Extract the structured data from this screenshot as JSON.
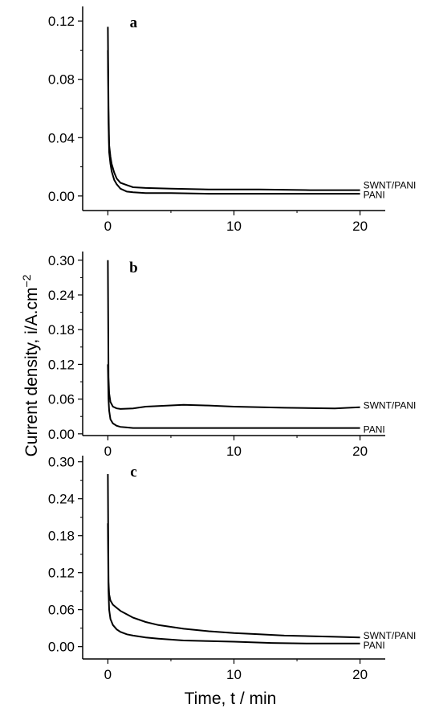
{
  "figure": {
    "ylabel": "Current density, i/A.cm",
    "ylabel_superscript": "−2",
    "xlabel": "Time, t / min"
  },
  "chart_data": [
    {
      "type": "line",
      "panel_label": "a",
      "xlim": [
        -2,
        22
      ],
      "ylim": [
        -0.01,
        0.13
      ],
      "x_ticks": [
        0,
        10,
        20
      ],
      "x_tick_labels": [
        "0",
        "10",
        "20"
      ],
      "y_ticks": [
        0.0,
        0.04,
        0.08,
        0.12
      ],
      "y_tick_labels": [
        "0.00",
        "0.04",
        "0.08",
        "0.12"
      ],
      "grid": false,
      "series": [
        {
          "name": "SWNT/PANI",
          "x": [
            0,
            0.05,
            0.1,
            0.2,
            0.3,
            0.5,
            0.7,
            1.0,
            1.5,
            2.0,
            3.0,
            5.0,
            8.0,
            12.0,
            16.0,
            20.0
          ],
          "y": [
            0.116,
            0.06,
            0.035,
            0.027,
            0.022,
            0.016,
            0.012,
            0.009,
            0.0075,
            0.006,
            0.0055,
            0.005,
            0.0045,
            0.0045,
            0.004,
            0.004
          ]
        },
        {
          "name": "PANI",
          "x": [
            0,
            0.05,
            0.1,
            0.2,
            0.3,
            0.5,
            0.7,
            1.0,
            1.5,
            2.0,
            3.0,
            5.0,
            8.0,
            12.0,
            16.0,
            20.0
          ],
          "y": [
            0.1,
            0.05,
            0.03,
            0.022,
            0.017,
            0.011,
            0.008,
            0.005,
            0.003,
            0.0025,
            0.002,
            0.002,
            0.0015,
            0.0015,
            0.0015,
            0.0015
          ]
        }
      ]
    },
    {
      "type": "line",
      "panel_label": "b",
      "xlim": [
        -2,
        22
      ],
      "ylim": [
        -0.003,
        0.315
      ],
      "x_ticks": [
        0,
        10,
        20
      ],
      "x_tick_labels": [
        "0",
        "10",
        "20"
      ],
      "y_ticks": [
        0.0,
        0.06,
        0.12,
        0.18,
        0.24,
        0.3
      ],
      "y_tick_labels": [
        "0.00",
        "0.06",
        "0.12",
        "0.18",
        "0.24",
        "0.30"
      ],
      "grid": false,
      "series": [
        {
          "name": "SWNT/PANI",
          "x": [
            0,
            0.05,
            0.1,
            0.2,
            0.4,
            0.7,
            1.0,
            2.0,
            3.0,
            4.0,
            6.0,
            8.0,
            10.0,
            14.0,
            18.0,
            20.0
          ],
          "y": [
            0.3,
            0.098,
            0.07,
            0.055,
            0.047,
            0.044,
            0.043,
            0.044,
            0.047,
            0.048,
            0.05,
            0.049,
            0.047,
            0.045,
            0.044,
            0.046
          ]
        },
        {
          "name": "PANI",
          "x": [
            0,
            0.05,
            0.1,
            0.2,
            0.4,
            0.7,
            1.0,
            1.5,
            2.0,
            4.0,
            8.0,
            12.0,
            16.0,
            20.0
          ],
          "y": [
            0.12,
            0.06,
            0.04,
            0.025,
            0.018,
            0.014,
            0.012,
            0.011,
            0.01,
            0.01,
            0.01,
            0.01,
            0.01,
            0.01
          ]
        }
      ]
    },
    {
      "type": "line",
      "panel_label": "c",
      "xlim": [
        -2,
        22
      ],
      "ylim": [
        -0.02,
        0.31
      ],
      "x_ticks": [
        0,
        10,
        20
      ],
      "x_tick_labels": [
        "0",
        "10",
        "20"
      ],
      "y_ticks": [
        0.0,
        0.06,
        0.12,
        0.18,
        0.24,
        0.3
      ],
      "y_tick_labels": [
        "0.00",
        "0.06",
        "0.12",
        "0.18",
        "0.24",
        "0.30"
      ],
      "grid": false,
      "series": [
        {
          "name": "SWNT/PANI",
          "x": [
            0,
            0.05,
            0.1,
            0.2,
            0.4,
            0.7,
            1.0,
            2.0,
            3.0,
            4.0,
            6.0,
            8.0,
            10.0,
            12.0,
            14.0,
            16.0,
            18.0,
            20.0
          ],
          "y": [
            0.28,
            0.105,
            0.085,
            0.075,
            0.068,
            0.063,
            0.058,
            0.047,
            0.04,
            0.035,
            0.029,
            0.025,
            0.022,
            0.02,
            0.018,
            0.017,
            0.016,
            0.015
          ]
        },
        {
          "name": "PANI",
          "x": [
            0,
            0.05,
            0.1,
            0.2,
            0.4,
            0.7,
            1.0,
            1.5,
            2.0,
            3.0,
            4.0,
            6.0,
            8.0,
            10.0,
            13.0,
            16.0,
            20.0
          ],
          "y": [
            0.2,
            0.09,
            0.06,
            0.045,
            0.035,
            0.028,
            0.024,
            0.02,
            0.018,
            0.015,
            0.013,
            0.01,
            0.009,
            0.008,
            0.006,
            0.005,
            0.005
          ]
        }
      ]
    }
  ]
}
